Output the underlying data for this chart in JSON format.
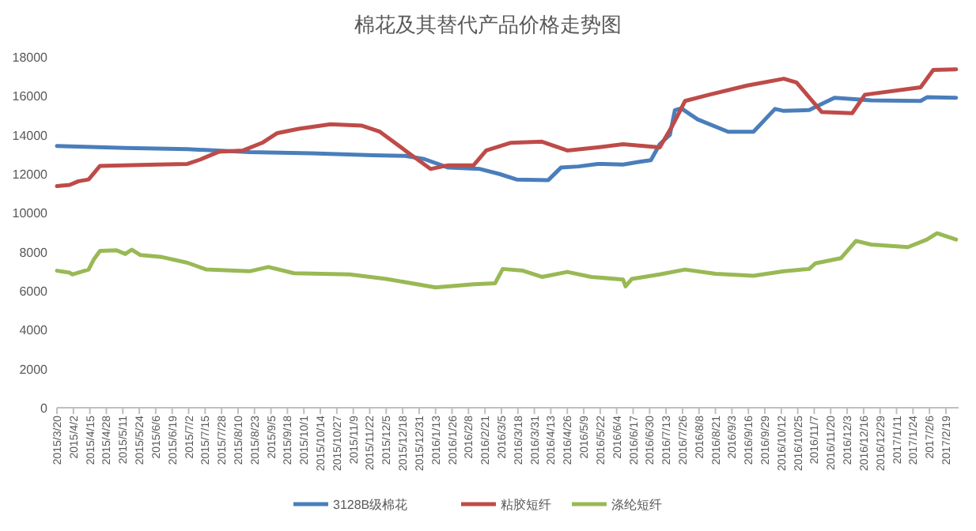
{
  "chart_data": {
    "type": "line",
    "title": "棉花及其替代产品价格走势图",
    "legend": "bottom",
    "xlim": [
      "2015-03-20",
      "2017-03-01"
    ],
    "ylim": [
      0,
      18000
    ],
    "yticks": [
      0,
      2000,
      4000,
      6000,
      8000,
      10000,
      12000,
      14000,
      16000,
      18000
    ],
    "xticks": [
      {
        "value": "2015-03-20",
        "label": "2015/3/20"
      },
      {
        "value": "2015-04-02",
        "label": "2015/4/2"
      },
      {
        "value": "2015-04-15",
        "label": "2015/4/15"
      },
      {
        "value": "2015-04-28",
        "label": "2015/4/28"
      },
      {
        "value": "2015-05-11",
        "label": "2015/5/11"
      },
      {
        "value": "2015-05-24",
        "label": "2015/5/24"
      },
      {
        "value": "2015-06-06",
        "label": "2015/6/6"
      },
      {
        "value": "2015-06-19",
        "label": "2015/6/19"
      },
      {
        "value": "2015-07-02",
        "label": "2015/7/2"
      },
      {
        "value": "2015-07-15",
        "label": "2015/7/15"
      },
      {
        "value": "2015-07-28",
        "label": "2015/7/28"
      },
      {
        "value": "2015-08-10",
        "label": "2015/8/10"
      },
      {
        "value": "2015-08-23",
        "label": "2015/8/23"
      },
      {
        "value": "2015-09-05",
        "label": "2015/9/5"
      },
      {
        "value": "2015-09-18",
        "label": "2015/9/18"
      },
      {
        "value": "2015-10-01",
        "label": "2015/10/1"
      },
      {
        "value": "2015-10-14",
        "label": "2015/10/14"
      },
      {
        "value": "2015-10-27",
        "label": "2015/10/27"
      },
      {
        "value": "2015-11-09",
        "label": "2015/11/9"
      },
      {
        "value": "2015-11-22",
        "label": "2015/11/22"
      },
      {
        "value": "2015-12-05",
        "label": "2015/12/5"
      },
      {
        "value": "2015-12-18",
        "label": "2015/12/18"
      },
      {
        "value": "2015-12-31",
        "label": "2015/12/31"
      },
      {
        "value": "2016-01-13",
        "label": "2016/1/13"
      },
      {
        "value": "2016-01-26",
        "label": "2016/1/26"
      },
      {
        "value": "2016-02-08",
        "label": "2016/2/8"
      },
      {
        "value": "2016-02-21",
        "label": "2016/2/21"
      },
      {
        "value": "2016-03-05",
        "label": "2016/3/5"
      },
      {
        "value": "2016-03-18",
        "label": "2016/3/18"
      },
      {
        "value": "2016-03-31",
        "label": "2016/3/31"
      },
      {
        "value": "2016-04-13",
        "label": "2016/4/13"
      },
      {
        "value": "2016-04-26",
        "label": "2016/4/26"
      },
      {
        "value": "2016-05-09",
        "label": "2016/5/9"
      },
      {
        "value": "2016-05-22",
        "label": "2016/5/22"
      },
      {
        "value": "2016-06-04",
        "label": "2016/6/4"
      },
      {
        "value": "2016-06-17",
        "label": "2016/6/17"
      },
      {
        "value": "2016-06-30",
        "label": "2016/6/30"
      },
      {
        "value": "2016-07-13",
        "label": "2016/7/13"
      },
      {
        "value": "2016-07-26",
        "label": "2016/7/26"
      },
      {
        "value": "2016-08-08",
        "label": "2016/8/8"
      },
      {
        "value": "2016-08-21",
        "label": "2016/8/21"
      },
      {
        "value": "2016-09-03",
        "label": "2016/9/3"
      },
      {
        "value": "2016-09-16",
        "label": "2016/9/16"
      },
      {
        "value": "2016-09-29",
        "label": "2016/9/29"
      },
      {
        "value": "2016-10-12",
        "label": "2016/10/12"
      },
      {
        "value": "2016-10-25",
        "label": "2016/10/25"
      },
      {
        "value": "2016-11-07",
        "label": "2016/11/7"
      },
      {
        "value": "2016-11-20",
        "label": "2016/11/20"
      },
      {
        "value": "2016-12-03",
        "label": "2016/12/3"
      },
      {
        "value": "2016-12-16",
        "label": "2016/12/16"
      },
      {
        "value": "2016-12-29",
        "label": "2016/12/29"
      },
      {
        "value": "2017-01-11",
        "label": "2017/1/11"
      },
      {
        "value": "2017-01-24",
        "label": "2017/1/24"
      },
      {
        "value": "2017-02-06",
        "label": "2017/2/6"
      },
      {
        "value": "2017-02-19",
        "label": "2017/2/19"
      }
    ],
    "series": [
      {
        "name": "3128B级棉花",
        "color": "#4a7ebb",
        "x": [
          "2015-03-20",
          "2015-05-13",
          "2015-07-01",
          "2015-08-19",
          "2015-10-07",
          "2015-11-25",
          "2015-12-20",
          "2016-01-04",
          "2016-01-23",
          "2016-02-17",
          "2016-03-03",
          "2016-03-17",
          "2016-04-11",
          "2016-04-21",
          "2016-05-05",
          "2016-05-20",
          "2016-06-09",
          "2016-06-23",
          "2016-07-01",
          "2016-07-08",
          "2016-07-16",
          "2016-07-20",
          "2016-07-25",
          "2016-08-07",
          "2016-08-31",
          "2016-09-20",
          "2016-10-07",
          "2016-10-14",
          "2016-11-03",
          "2016-11-23",
          "2016-12-22",
          "2017-01-30",
          "2017-02-04",
          "2017-02-27"
        ],
        "values": [
          13430,
          13330,
          13270,
          13110,
          13050,
          12950,
          12920,
          12760,
          12320,
          12250,
          12000,
          11710,
          11680,
          12320,
          12380,
          12510,
          12480,
          12630,
          12700,
          13520,
          14000,
          15270,
          15360,
          14790,
          14160,
          14160,
          15330,
          15230,
          15270,
          15900,
          15770,
          15740,
          15930,
          15900
        ]
      },
      {
        "name": "粘胶短纤",
        "color": "#be4b48",
        "x": [
          "2015-03-20",
          "2015-03-30",
          "2015-04-06",
          "2015-04-14",
          "2015-04-23",
          "2015-06-07",
          "2015-07-01",
          "2015-07-11",
          "2015-07-26",
          "2015-08-14",
          "2015-08-29",
          "2015-09-10",
          "2015-09-27",
          "2015-10-22",
          "2015-11-16",
          "2015-11-30",
          "2015-12-20",
          "2016-01-09",
          "2016-01-23",
          "2016-02-12",
          "2016-02-22",
          "2016-03-12",
          "2016-04-06",
          "2016-04-26",
          "2016-05-20",
          "2016-06-09",
          "2016-07-08",
          "2016-07-18",
          "2016-07-28",
          "2016-08-16",
          "2016-09-15",
          "2016-10-14",
          "2016-10-24",
          "2016-11-13",
          "2016-12-07",
          "2016-12-17",
          "2017-01-30",
          "2017-02-09",
          "2017-02-27"
        ],
        "values": [
          11370,
          11430,
          11620,
          11710,
          12410,
          12480,
          12510,
          12730,
          13140,
          13200,
          13590,
          14090,
          14310,
          14540,
          14470,
          14160,
          13200,
          12250,
          12440,
          12440,
          13200,
          13590,
          13650,
          13200,
          13360,
          13520,
          13360,
          14470,
          15740,
          16060,
          16530,
          16880,
          16690,
          15170,
          15110,
          16060,
          16440,
          17330,
          17360
        ]
      },
      {
        "name": "涤纶短纤",
        "color": "#98b954",
        "x": [
          "2015-03-20",
          "2015-03-30",
          "2015-04-01",
          "2015-04-14",
          "2015-04-18",
          "2015-04-23",
          "2015-05-06",
          "2015-05-13",
          "2015-05-18",
          "2015-05-25",
          "2015-06-11",
          "2015-07-01",
          "2015-07-16",
          "2015-08-19",
          "2015-09-03",
          "2015-09-23",
          "2015-11-06",
          "2015-12-05",
          "2016-01-13",
          "2016-02-12",
          "2016-02-29",
          "2016-03-06",
          "2016-03-22",
          "2016-04-06",
          "2016-04-26",
          "2016-05-15",
          "2016-06-09",
          "2016-06-11",
          "2016-06-16",
          "2016-07-08",
          "2016-07-28",
          "2016-08-21",
          "2016-09-20",
          "2016-10-14",
          "2016-11-03",
          "2016-11-08",
          "2016-11-28",
          "2016-12-10",
          "2016-12-22",
          "2017-01-20",
          "2017-02-04",
          "2017-02-12",
          "2017-02-27"
        ],
        "values": [
          7030,
          6930,
          6840,
          7090,
          7600,
          8050,
          8080,
          7890,
          8110,
          7830,
          7730,
          7440,
          7090,
          7000,
          7220,
          6900,
          6840,
          6610,
          6170,
          6330,
          6390,
          7120,
          7030,
          6710,
          6970,
          6710,
          6580,
          6230,
          6610,
          6840,
          7090,
          6870,
          6770,
          7000,
          7120,
          7410,
          7670,
          8560,
          8370,
          8240,
          8630,
          8950,
          8630
        ]
      }
    ]
  }
}
